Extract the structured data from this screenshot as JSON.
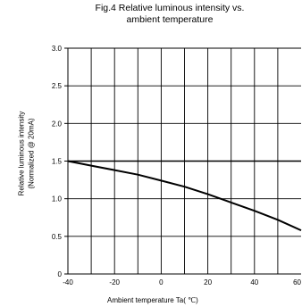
{
  "chart_data": {
    "type": "line",
    "title_line1": "Fig.4 Relative luminous intensity vs.",
    "title_line2": "ambient temperature",
    "xlabel": "Ambient temperature Ta( ℃)",
    "ylabel_line1": "Relative luminous intensity",
    "ylabel_line2": "(Normalized @ 20mA)",
    "xlim": [
      -40,
      60
    ],
    "ylim": [
      0,
      3.0
    ],
    "x_ticks": [
      -40,
      -20,
      0,
      20,
      40,
      60
    ],
    "x_tick_labels": [
      "-40",
      "-20",
      "0",
      "20",
      "40",
      "60"
    ],
    "y_ticks": [
      0,
      0.5,
      1.0,
      1.5,
      2.0,
      2.5,
      3.0
    ],
    "y_tick_labels": [
      "0",
      "0.5",
      "1.0",
      "1.5",
      "2.0",
      "2.5",
      "3.0"
    ],
    "grid": true,
    "series": [
      {
        "x": [
          -40,
          -30,
          -20,
          -10,
          0,
          10,
          20,
          30,
          40,
          50,
          60
        ],
        "values": [
          1.5,
          1.44,
          1.38,
          1.32,
          1.24,
          1.16,
          1.06,
          0.95,
          0.84,
          0.72,
          0.58
        ]
      }
    ],
    "reference_line": {
      "y": 1.5
    },
    "line_color": "#000000"
  }
}
